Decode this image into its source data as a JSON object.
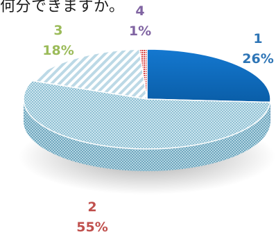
{
  "header": {
    "text": "何分できますか。"
  },
  "chart_data": {
    "type": "pie",
    "style": "3d",
    "slices": [
      {
        "label": "1",
        "percent_label": "26%",
        "value": 26,
        "color": "#0b6dc2"
      },
      {
        "label": "2",
        "percent_label": "55%",
        "value": 55,
        "color": "#a9d3e0"
      },
      {
        "label": "3",
        "percent_label": "18%",
        "value": 18,
        "color": "#d6e9f1"
      },
      {
        "label": "4",
        "percent_label": "1%",
        "value": 1,
        "color": "#d83c3c"
      }
    ],
    "label_colors": {
      "1": "#2e75b6",
      "2": "#c0504d",
      "3": "#9bbb59",
      "4": "#8064a2"
    },
    "legend": "none"
  }
}
